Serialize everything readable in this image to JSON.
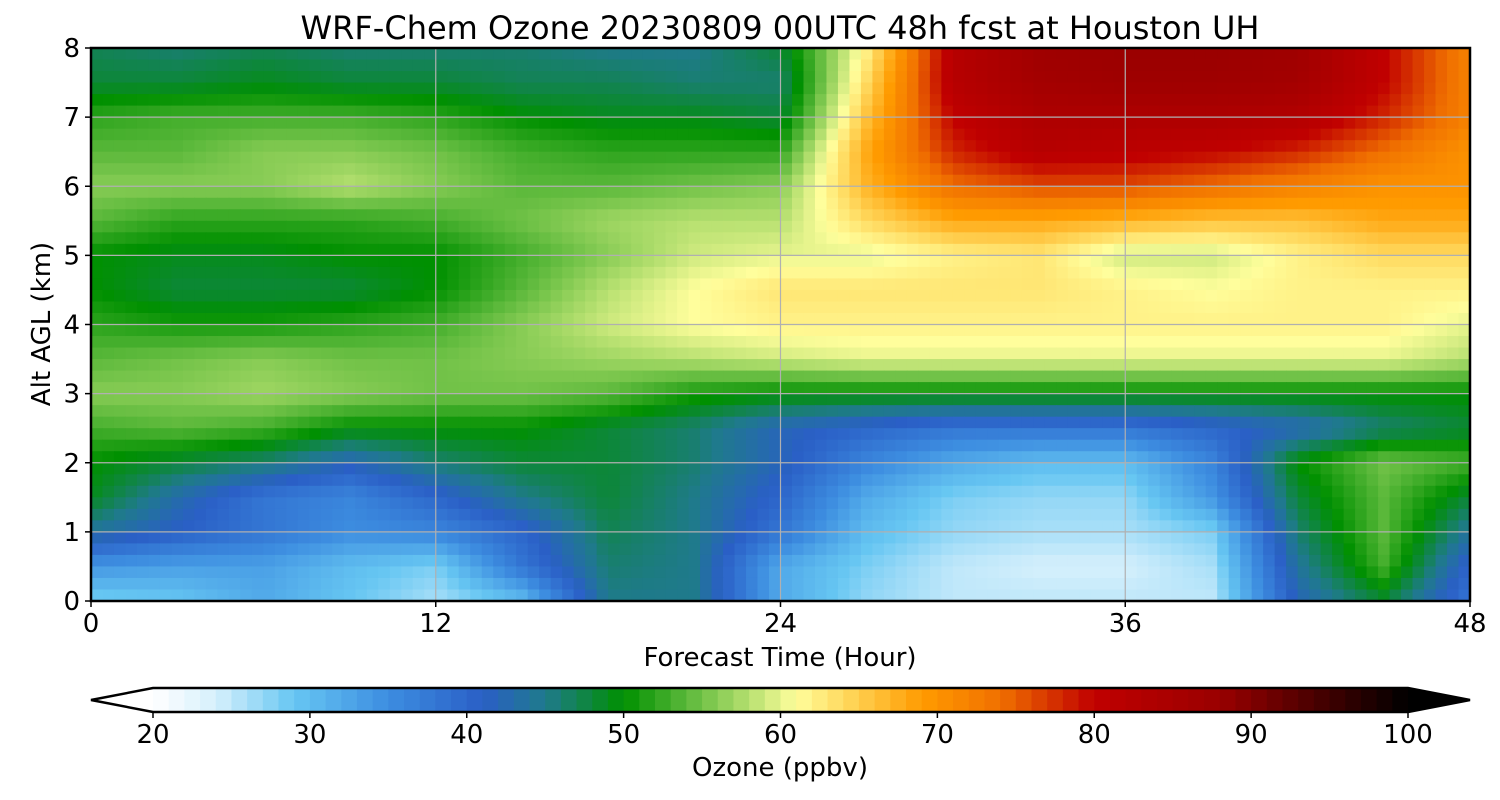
{
  "chart_data": {
    "type": "heatmap",
    "title": "WRF-Chem Ozone  20230809 00UTC 48h fcst at Houston UH",
    "xlabel": "Forecast Time (Hour)",
    "ylabel": "Alt AGL (km)",
    "xlim": [
      0,
      48
    ],
    "ylim": [
      0,
      8
    ],
    "x_ticks": [
      0,
      12,
      24,
      36,
      48
    ],
    "y_ticks": [
      0,
      1,
      2,
      3,
      4,
      5,
      6,
      7,
      8
    ],
    "grid": true,
    "x": [
      0,
      3,
      6,
      9,
      12,
      15,
      18,
      21,
      24,
      27,
      30,
      33,
      36,
      39,
      42,
      45,
      48
    ],
    "y": [
      0,
      0.5,
      1,
      1.5,
      2,
      2.5,
      3,
      3.5,
      4,
      4.5,
      5,
      5.5,
      6,
      6.5,
      7,
      7.5,
      8
    ],
    "z": [
      [
        28,
        29,
        32,
        29,
        26,
        30,
        45,
        45,
        32,
        27,
        25,
        25,
        25,
        25,
        42,
        48,
        38
      ],
      [
        34,
        33,
        33,
        30,
        28,
        38,
        46,
        45,
        32,
        28,
        25,
        24,
        24,
        26,
        44,
        53,
        40
      ],
      [
        44,
        41,
        38,
        35,
        36,
        40,
        47,
        45,
        38,
        30,
        27,
        26,
        26,
        28,
        46,
        54,
        44
      ],
      [
        49,
        43,
        38,
        36,
        40,
        45,
        48,
        45,
        40,
        32,
        28,
        27,
        27,
        34,
        48,
        54,
        48
      ],
      [
        50,
        48,
        46,
        42,
        46,
        48,
        48,
        46,
        42,
        36,
        32,
        30,
        30,
        36,
        50,
        55,
        53
      ],
      [
        53,
        54,
        53,
        50,
        50,
        50,
        48,
        46,
        42,
        40,
        38,
        38,
        38,
        40,
        42,
        46,
        48
      ],
      [
        56,
        56,
        57,
        56,
        55,
        55,
        54,
        51,
        50,
        50,
        50,
        50,
        50,
        50,
        50,
        50,
        50
      ],
      [
        54,
        55,
        56,
        55,
        55,
        56,
        57,
        58,
        59,
        60,
        60,
        60,
        60,
        60,
        60,
        60,
        58
      ],
      [
        52,
        51,
        51,
        52,
        53,
        56,
        59,
        61,
        62,
        62,
        62,
        62,
        62,
        62,
        62,
        62,
        60
      ],
      [
        50,
        48,
        48,
        48,
        50,
        54,
        58,
        61,
        63,
        63,
        63,
        63,
        62,
        61,
        62,
        62,
        62
      ],
      [
        50,
        49,
        49,
        50,
        50,
        53,
        56,
        59,
        60,
        60,
        62,
        63,
        59,
        59,
        62,
        64,
        64
      ],
      [
        54,
        52,
        52,
        52,
        53,
        55,
        57,
        58,
        58,
        64,
        68,
        68,
        67,
        66,
        66,
        68,
        68
      ],
      [
        56,
        56,
        56,
        58,
        56,
        54,
        54,
        55,
        56,
        67,
        74,
        76,
        76,
        74,
        72,
        70,
        70
      ],
      [
        54,
        54,
        56,
        56,
        55,
        53,
        52,
        52,
        52,
        68,
        78,
        82,
        81,
        80,
        78,
        74,
        70
      ],
      [
        52,
        53,
        53,
        53,
        52,
        50,
        49,
        49,
        48,
        66,
        80,
        84,
        84,
        84,
        83,
        78,
        72
      ],
      [
        48,
        48,
        49,
        48,
        48,
        47,
        47,
        46,
        46,
        64,
        82,
        86,
        87,
        87,
        86,
        80,
        72
      ],
      [
        47,
        46,
        47,
        46,
        46,
        46,
        45,
        45,
        48,
        62,
        82,
        87,
        88,
        88,
        87,
        80,
        72
      ]
    ],
    "colorbar": {
      "label": "Ozone  (ppbv)",
      "min": 20,
      "max": 100,
      "ticks": [
        20,
        30,
        40,
        50,
        60,
        70,
        80,
        90,
        100
      ],
      "extend": "both",
      "stops": [
        {
          "v": 20,
          "c": "#ffffff"
        },
        {
          "v": 24,
          "c": "#d6f0fc"
        },
        {
          "v": 29,
          "c": "#66c6f2"
        },
        {
          "v": 35,
          "c": "#3d8de0"
        },
        {
          "v": 41,
          "c": "#2a5fc6"
        },
        {
          "v": 45,
          "c": "#1f7a8c"
        },
        {
          "v": 50,
          "c": "#009000"
        },
        {
          "v": 54,
          "c": "#5ab83a"
        },
        {
          "v": 58,
          "c": "#b6e070"
        },
        {
          "v": 61,
          "c": "#fffe9c"
        },
        {
          "v": 64,
          "c": "#ffda60"
        },
        {
          "v": 69,
          "c": "#ff9b00"
        },
        {
          "v": 74,
          "c": "#f07000"
        },
        {
          "v": 80,
          "c": "#c00000"
        },
        {
          "v": 88,
          "c": "#9a0000"
        },
        {
          "v": 94,
          "c": "#4a0000"
        },
        {
          "v": 100,
          "c": "#000000"
        }
      ]
    }
  }
}
